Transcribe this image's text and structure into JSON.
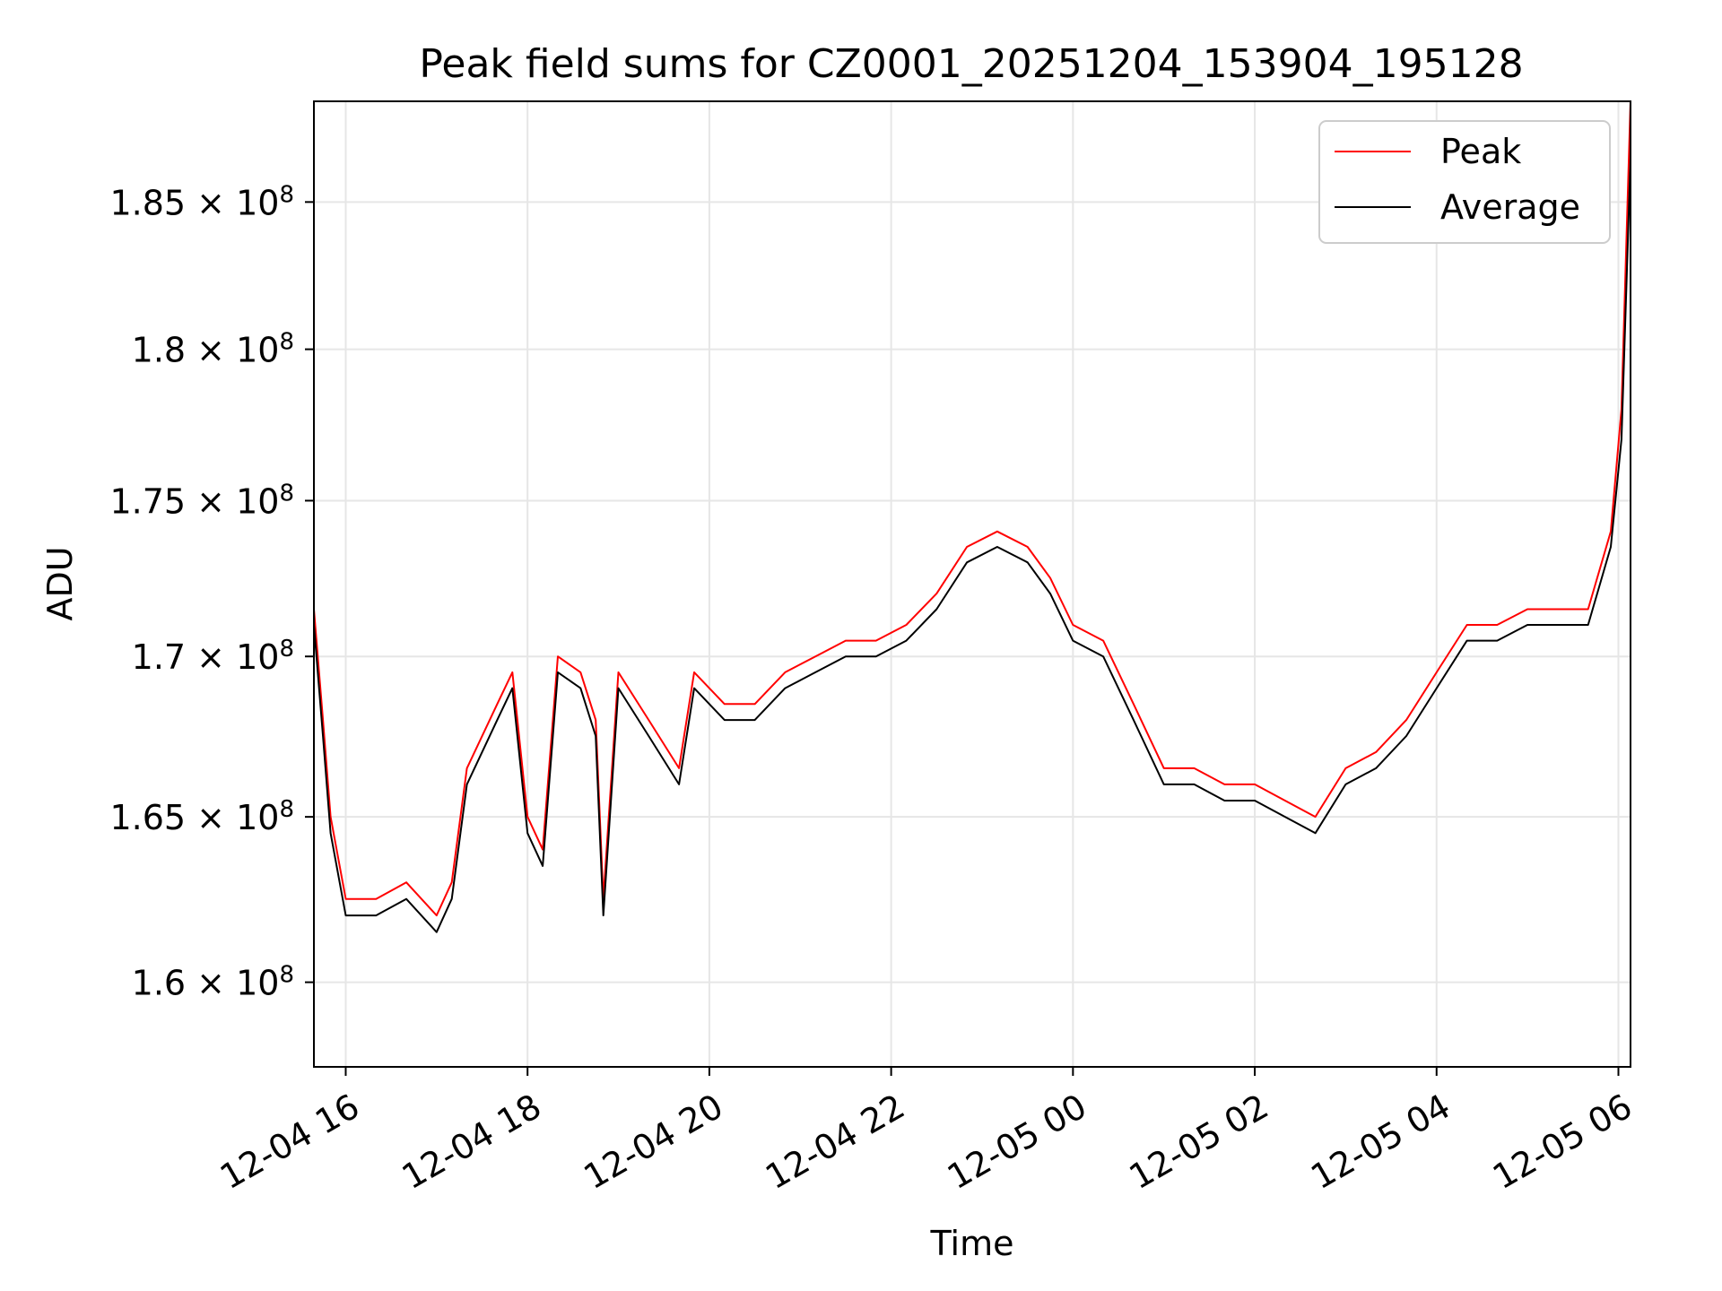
{
  "chart_data": {
    "type": "line",
    "title": "Peak field sums for CZ0001_20251204_153904_195128",
    "xlabel": "Time",
    "ylabel": "ADU",
    "yscale": "log",
    "grid": true,
    "legend_position": "top-right",
    "xlim": [
      "2025-12-04 15:39",
      "2025-12-05 06:08"
    ],
    "ylim": [
      157500000,
      188500000
    ],
    "x_ticks": [
      {
        "value": "2025-12-04 16:00",
        "label": "12-04 16"
      },
      {
        "value": "2025-12-04 18:00",
        "label": "12-04 18"
      },
      {
        "value": "2025-12-04 20:00",
        "label": "12-04 20"
      },
      {
        "value": "2025-12-04 22:00",
        "label": "12-04 22"
      },
      {
        "value": "2025-12-05 00:00",
        "label": "12-05 00"
      },
      {
        "value": "2025-12-05 02:00",
        "label": "12-05 02"
      },
      {
        "value": "2025-12-05 04:00",
        "label": "12-05 04"
      },
      {
        "value": "2025-12-05 06:00",
        "label": "12-05 06"
      }
    ],
    "y_ticks": [
      {
        "value": 160000000,
        "mantissa": "1.6",
        "base": "10",
        "exponent": "8"
      },
      {
        "value": 165000000,
        "mantissa": "1.65",
        "base": "10",
        "exponent": "8"
      },
      {
        "value": 170000000,
        "mantissa": "1.7",
        "base": "10",
        "exponent": "8"
      },
      {
        "value": 175000000,
        "mantissa": "1.75",
        "base": "10",
        "exponent": "8"
      },
      {
        "value": 180000000,
        "mantissa": "1.8",
        "base": "10",
        "exponent": "8"
      },
      {
        "value": 185000000,
        "mantissa": "1.85",
        "base": "10",
        "exponent": "8"
      }
    ],
    "series": [
      {
        "name": "Peak",
        "color": "#ff0000",
        "points": [
          [
            "2025-12-04 15:39",
            171500000
          ],
          [
            "2025-12-04 15:45",
            168000000
          ],
          [
            "2025-12-04 15:50",
            165000000
          ],
          [
            "2025-12-04 16:00",
            162500000
          ],
          [
            "2025-12-04 16:20",
            162500000
          ],
          [
            "2025-12-04 16:40",
            163000000
          ],
          [
            "2025-12-04 17:00",
            162000000
          ],
          [
            "2025-12-04 17:10",
            163000000
          ],
          [
            "2025-12-04 17:20",
            166500000
          ],
          [
            "2025-12-04 17:40",
            168500000
          ],
          [
            "2025-12-04 17:50",
            169500000
          ],
          [
            "2025-12-04 18:00",
            165000000
          ],
          [
            "2025-12-04 18:10",
            164000000
          ],
          [
            "2025-12-04 18:20",
            170000000
          ],
          [
            "2025-12-04 18:35",
            169500000
          ],
          [
            "2025-12-04 18:45",
            168000000
          ],
          [
            "2025-12-04 18:50",
            162500000
          ],
          [
            "2025-12-04 19:00",
            169500000
          ],
          [
            "2025-12-04 19:20",
            168000000
          ],
          [
            "2025-12-04 19:40",
            166500000
          ],
          [
            "2025-12-04 19:50",
            169500000
          ],
          [
            "2025-12-04 20:10",
            168500000
          ],
          [
            "2025-12-04 20:30",
            168500000
          ],
          [
            "2025-12-04 20:50",
            169500000
          ],
          [
            "2025-12-04 21:10",
            170000000
          ],
          [
            "2025-12-04 21:30",
            170500000
          ],
          [
            "2025-12-04 21:50",
            170500000
          ],
          [
            "2025-12-04 22:10",
            171000000
          ],
          [
            "2025-12-04 22:30",
            172000000
          ],
          [
            "2025-12-04 22:50",
            173500000
          ],
          [
            "2025-12-04 23:10",
            174000000
          ],
          [
            "2025-12-04 23:30",
            173500000
          ],
          [
            "2025-12-04 23:45",
            172500000
          ],
          [
            "2025-12-05 00:00",
            171000000
          ],
          [
            "2025-12-05 00:20",
            170500000
          ],
          [
            "2025-12-05 00:40",
            168500000
          ],
          [
            "2025-12-05 01:00",
            166500000
          ],
          [
            "2025-12-05 01:20",
            166500000
          ],
          [
            "2025-12-05 01:40",
            166000000
          ],
          [
            "2025-12-05 02:00",
            166000000
          ],
          [
            "2025-12-05 02:20",
            165500000
          ],
          [
            "2025-12-05 02:40",
            165000000
          ],
          [
            "2025-12-05 03:00",
            166500000
          ],
          [
            "2025-12-05 03:20",
            167000000
          ],
          [
            "2025-12-05 03:40",
            168000000
          ],
          [
            "2025-12-05 04:00",
            169500000
          ],
          [
            "2025-12-05 04:20",
            171000000
          ],
          [
            "2025-12-05 04:40",
            171000000
          ],
          [
            "2025-12-05 05:00",
            171500000
          ],
          [
            "2025-12-05 05:20",
            171500000
          ],
          [
            "2025-12-05 05:40",
            171500000
          ],
          [
            "2025-12-05 05:55",
            174000000
          ],
          [
            "2025-12-05 06:02",
            178000000
          ],
          [
            "2025-12-05 06:08",
            188500000
          ]
        ]
      },
      {
        "name": "Average",
        "color": "#000000",
        "points": [
          [
            "2025-12-04 15:39",
            171000000
          ],
          [
            "2025-12-04 15:45",
            167500000
          ],
          [
            "2025-12-04 15:50",
            164500000
          ],
          [
            "2025-12-04 16:00",
            162000000
          ],
          [
            "2025-12-04 16:20",
            162000000
          ],
          [
            "2025-12-04 16:40",
            162500000
          ],
          [
            "2025-12-04 17:00",
            161500000
          ],
          [
            "2025-12-04 17:10",
            162500000
          ],
          [
            "2025-12-04 17:20",
            166000000
          ],
          [
            "2025-12-04 17:40",
            168000000
          ],
          [
            "2025-12-04 17:50",
            169000000
          ],
          [
            "2025-12-04 18:00",
            164500000
          ],
          [
            "2025-12-04 18:10",
            163500000
          ],
          [
            "2025-12-04 18:20",
            169500000
          ],
          [
            "2025-12-04 18:35",
            169000000
          ],
          [
            "2025-12-04 18:45",
            167500000
          ],
          [
            "2025-12-04 18:50",
            162000000
          ],
          [
            "2025-12-04 19:00",
            169000000
          ],
          [
            "2025-12-04 19:20",
            167500000
          ],
          [
            "2025-12-04 19:40",
            166000000
          ],
          [
            "2025-12-04 19:50",
            169000000
          ],
          [
            "2025-12-04 20:10",
            168000000
          ],
          [
            "2025-12-04 20:30",
            168000000
          ],
          [
            "2025-12-04 20:50",
            169000000
          ],
          [
            "2025-12-04 21:10",
            169500000
          ],
          [
            "2025-12-04 21:30",
            170000000
          ],
          [
            "2025-12-04 21:50",
            170000000
          ],
          [
            "2025-12-04 22:10",
            170500000
          ],
          [
            "2025-12-04 22:30",
            171500000
          ],
          [
            "2025-12-04 22:50",
            173000000
          ],
          [
            "2025-12-04 23:10",
            173500000
          ],
          [
            "2025-12-04 23:30",
            173000000
          ],
          [
            "2025-12-04 23:45",
            172000000
          ],
          [
            "2025-12-05 00:00",
            170500000
          ],
          [
            "2025-12-05 00:20",
            170000000
          ],
          [
            "2025-12-05 00:40",
            168000000
          ],
          [
            "2025-12-05 01:00",
            166000000
          ],
          [
            "2025-12-05 01:20",
            166000000
          ],
          [
            "2025-12-05 01:40",
            165500000
          ],
          [
            "2025-12-05 02:00",
            165500000
          ],
          [
            "2025-12-05 02:20",
            165000000
          ],
          [
            "2025-12-05 02:40",
            164500000
          ],
          [
            "2025-12-05 03:00",
            166000000
          ],
          [
            "2025-12-05 03:20",
            166500000
          ],
          [
            "2025-12-05 03:40",
            167500000
          ],
          [
            "2025-12-05 04:00",
            169000000
          ],
          [
            "2025-12-05 04:20",
            170500000
          ],
          [
            "2025-12-05 04:40",
            170500000
          ],
          [
            "2025-12-05 05:00",
            171000000
          ],
          [
            "2025-12-05 05:20",
            171000000
          ],
          [
            "2025-12-05 05:40",
            171000000
          ],
          [
            "2025-12-05 05:55",
            173500000
          ],
          [
            "2025-12-05 06:02",
            177000000
          ],
          [
            "2025-12-05 06:08",
            186500000
          ]
        ]
      }
    ]
  }
}
